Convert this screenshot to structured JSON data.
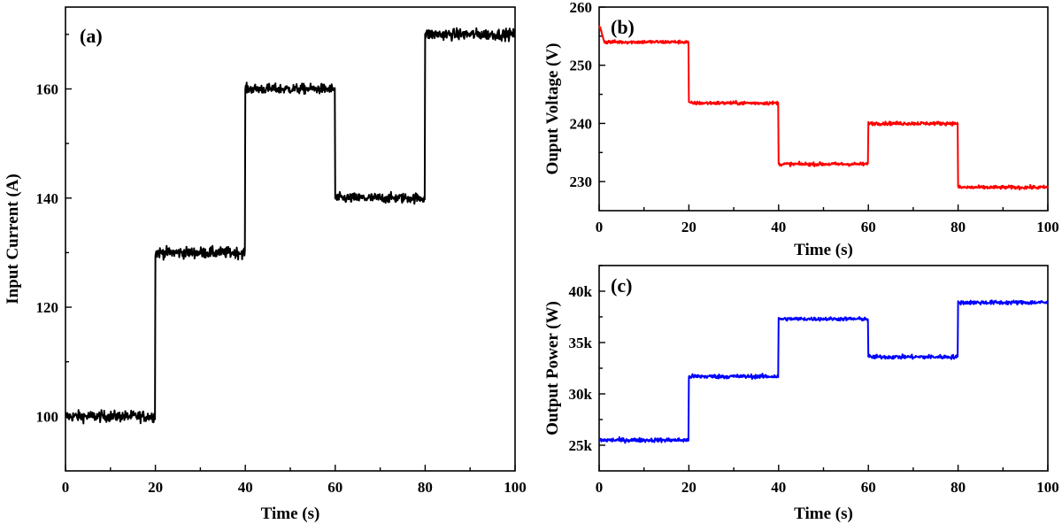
{
  "chart_data": [
    {
      "id": "a",
      "type": "line",
      "panel_label": "(a)",
      "xlabel": "Time (s)",
      "ylabel": "Input Current (A)",
      "xlim": [
        0,
        100
      ],
      "ylim": [
        90,
        175
      ],
      "x_ticks": [
        0,
        20,
        40,
        60,
        80,
        100
      ],
      "x_tick_labels": [
        "0",
        "20",
        "40",
        "60",
        "80",
        "100"
      ],
      "y_ticks": [
        100,
        120,
        140,
        160
      ],
      "y_tick_labels": [
        "100",
        "120",
        "140",
        "160"
      ],
      "color": "#000000",
      "series": [
        {
          "segments": [
            {
              "t_start": 0,
              "t_end": 20,
              "value": 100,
              "noise": 1.0
            },
            {
              "t_start": 20,
              "t_end": 40,
              "value": 130,
              "noise": 1.0
            },
            {
              "t_start": 40,
              "t_end": 60,
              "value": 160,
              "noise": 0.9
            },
            {
              "t_start": 60,
              "t_end": 80,
              "value": 140,
              "noise": 0.9
            },
            {
              "t_start": 80,
              "t_end": 100,
              "value": 170,
              "noise": 1.0
            }
          ]
        }
      ]
    },
    {
      "id": "b",
      "type": "line",
      "panel_label": "(b)",
      "xlabel": "Time (s)",
      "ylabel": "Ouput Voltage (V)",
      "xlim": [
        0,
        100
      ],
      "ylim": [
        225,
        260
      ],
      "x_ticks": [
        0,
        20,
        40,
        60,
        80,
        100
      ],
      "x_tick_labels": [
        "0",
        "20",
        "40",
        "60",
        "80",
        "100"
      ],
      "y_ticks": [
        230,
        240,
        250,
        260
      ],
      "y_tick_labels": [
        "230",
        "240",
        "250",
        "260"
      ],
      "color": "#ff0000",
      "initial_peak": 257,
      "series": [
        {
          "segments": [
            {
              "t_start": 0,
              "t_end": 20,
              "value": 254,
              "noise": 0.3
            },
            {
              "t_start": 20,
              "t_end": 40,
              "value": 243.5,
              "noise": 0.3
            },
            {
              "t_start": 40,
              "t_end": 60,
              "value": 233,
              "noise": 0.3
            },
            {
              "t_start": 60,
              "t_end": 80,
              "value": 240,
              "noise": 0.3
            },
            {
              "t_start": 80,
              "t_end": 100,
              "value": 229,
              "noise": 0.3
            }
          ]
        }
      ]
    },
    {
      "id": "c",
      "type": "line",
      "panel_label": "(c)",
      "xlabel": "Time (s)",
      "ylabel": "Output Power (W)",
      "xlim": [
        0,
        100
      ],
      "ylim": [
        22500,
        42500
      ],
      "x_ticks": [
        0,
        20,
        40,
        60,
        80,
        100
      ],
      "x_tick_labels": [
        "0",
        "20",
        "40",
        "60",
        "80",
        "100"
      ],
      "y_ticks": [
        25000,
        30000,
        35000,
        40000
      ],
      "y_tick_labels": [
        "25k",
        "30k",
        "35k",
        "40k"
      ],
      "color": "#0000ff",
      "series": [
        {
          "segments": [
            {
              "t_start": 0,
              "t_end": 20,
              "value": 25500,
              "noise": 200
            },
            {
              "t_start": 20,
              "t_end": 40,
              "value": 31700,
              "noise": 200
            },
            {
              "t_start": 40,
              "t_end": 60,
              "value": 37300,
              "noise": 170
            },
            {
              "t_start": 60,
              "t_end": 80,
              "value": 33600,
              "noise": 200
            },
            {
              "t_start": 80,
              "t_end": 100,
              "value": 38900,
              "noise": 200
            }
          ]
        }
      ]
    }
  ]
}
